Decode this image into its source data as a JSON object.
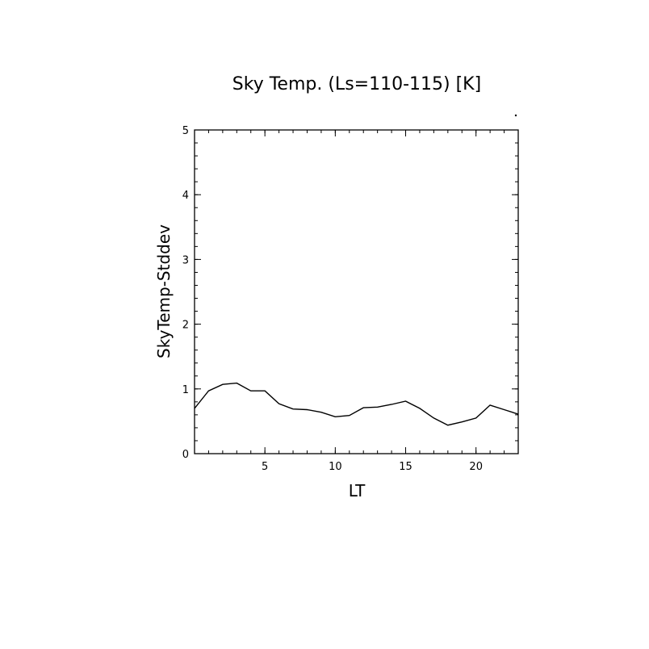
{
  "chart_data": {
    "type": "line",
    "title": "Sky Temp. (Ls=110-115) [K]",
    "xlabel": "LT",
    "ylabel": "SkyTemp-Stddev",
    "xlim": [
      0,
      23
    ],
    "ylim": [
      0,
      5
    ],
    "x_ticks": [
      5,
      10,
      15,
      20
    ],
    "y_ticks": [
      0,
      1,
      2,
      3,
      4,
      5
    ],
    "x_tick_labels": [
      "5",
      "10",
      "15",
      "20"
    ],
    "y_tick_labels": [
      "0",
      "1",
      "2",
      "3",
      "4",
      "5"
    ],
    "x_minor_step": 1,
    "y_minor_step": 0.2,
    "grid": false,
    "series": [
      {
        "x": [
          0,
          1,
          2,
          3,
          4,
          5,
          6,
          7,
          8,
          9,
          10,
          11,
          12,
          13,
          14,
          15,
          16,
          17,
          18,
          19,
          20,
          21,
          22,
          23
        ],
        "values": [
          0.7,
          0.97,
          1.07,
          1.09,
          0.97,
          0.97,
          0.77,
          0.69,
          0.68,
          0.64,
          0.57,
          0.59,
          0.71,
          0.72,
          0.76,
          0.81,
          0.7,
          0.55,
          0.44,
          0.49,
          0.55,
          0.75,
          0.68,
          0.61
        ]
      }
    ]
  }
}
